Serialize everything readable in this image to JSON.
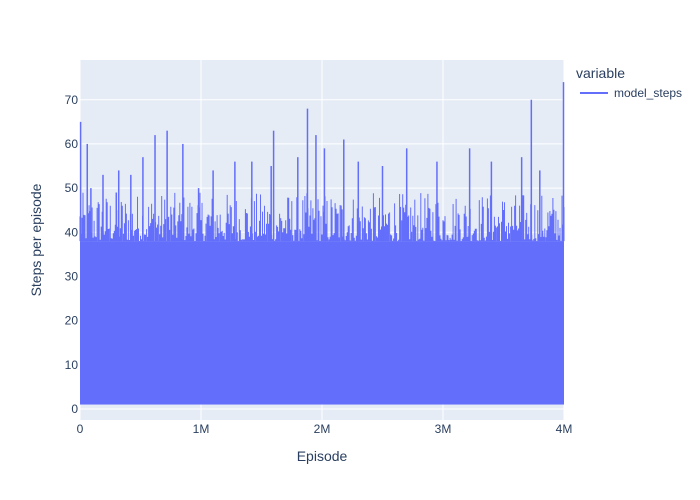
{
  "chart_data": {
    "type": "line",
    "xlabel": "Episode",
    "ylabel": "Steps per episode",
    "xlim": [
      0,
      4000000
    ],
    "ylim": [
      -2.5,
      79
    ],
    "x_ticks": [
      {
        "value": 0,
        "label": "0"
      },
      {
        "value": 1000000,
        "label": "1M"
      },
      {
        "value": 2000000,
        "label": "2M"
      },
      {
        "value": 3000000,
        "label": "3M"
      },
      {
        "value": 4000000,
        "label": "4M"
      }
    ],
    "y_ticks": [
      {
        "value": 0,
        "label": "0"
      },
      {
        "value": 10,
        "label": "10"
      },
      {
        "value": 20,
        "label": "20"
      },
      {
        "value": 30,
        "label": "30"
      },
      {
        "value": 40,
        "label": "40"
      },
      {
        "value": 50,
        "label": "50"
      },
      {
        "value": 60,
        "label": "60"
      },
      {
        "value": 70,
        "label": "70"
      }
    ],
    "grid": true,
    "legend": {
      "title": "variable",
      "placement": "right"
    },
    "series": [
      {
        "name": "model_steps",
        "color": "#636efa",
        "min_envelope": 1,
        "dense_band_max": 38,
        "peaks": [
          {
            "x": 5000,
            "y": 65
          },
          {
            "x": 60000,
            "y": 60
          },
          {
            "x": 90000,
            "y": 50
          },
          {
            "x": 190000,
            "y": 53
          },
          {
            "x": 300000,
            "y": 49
          },
          {
            "x": 320000,
            "y": 54
          },
          {
            "x": 420000,
            "y": 53
          },
          {
            "x": 520000,
            "y": 57
          },
          {
            "x": 620000,
            "y": 62
          },
          {
            "x": 720000,
            "y": 63
          },
          {
            "x": 850000,
            "y": 60
          },
          {
            "x": 980000,
            "y": 50
          },
          {
            "x": 1100000,
            "y": 54
          },
          {
            "x": 1280000,
            "y": 56
          },
          {
            "x": 1420000,
            "y": 56
          },
          {
            "x": 1580000,
            "y": 55
          },
          {
            "x": 1600000,
            "y": 63
          },
          {
            "x": 1800000,
            "y": 57
          },
          {
            "x": 1880000,
            "y": 68
          },
          {
            "x": 1950000,
            "y": 62
          },
          {
            "x": 2020000,
            "y": 59
          },
          {
            "x": 2180000,
            "y": 61
          },
          {
            "x": 2300000,
            "y": 56
          },
          {
            "x": 2500000,
            "y": 55
          },
          {
            "x": 2700000,
            "y": 59
          },
          {
            "x": 2950000,
            "y": 56
          },
          {
            "x": 3220000,
            "y": 59
          },
          {
            "x": 3400000,
            "y": 56
          },
          {
            "x": 3650000,
            "y": 57
          },
          {
            "x": 3730000,
            "y": 70
          },
          {
            "x": 3800000,
            "y": 54
          },
          {
            "x": 4000000,
            "y": 74
          }
        ]
      }
    ]
  }
}
